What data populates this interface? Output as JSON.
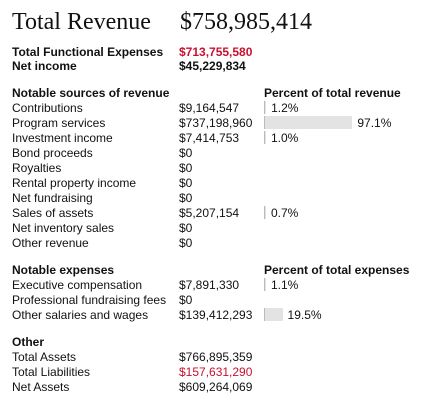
{
  "header": {
    "title": "Total Revenue",
    "amount": "$758,985,414"
  },
  "summary": [
    {
      "label": "Total Functional Expenses",
      "value": "$713,755,580",
      "color": "#c8102e"
    },
    {
      "label": "Net income",
      "value": "$45,229,834"
    }
  ],
  "revenue": {
    "heading": "Notable sources of revenue",
    "percent_heading": "Percent of total revenue",
    "rows": [
      {
        "label": "Contributions",
        "amount": "$9,164,547",
        "percent": 1.2,
        "percent_label": "1.2%"
      },
      {
        "label": "Program services",
        "amount": "$737,198,960",
        "percent": 97.1,
        "percent_label": "97.1%"
      },
      {
        "label": "Investment income",
        "amount": "$7,414,753",
        "percent": 1.0,
        "percent_label": "1.0%"
      },
      {
        "label": "Bond proceeds",
        "amount": "$0"
      },
      {
        "label": "Royalties",
        "amount": "$0"
      },
      {
        "label": "Rental property income",
        "amount": "$0"
      },
      {
        "label": "Net fundraising",
        "amount": "$0"
      },
      {
        "label": "Sales of assets",
        "amount": "$5,207,154",
        "percent": 0.7,
        "percent_label": "0.7%"
      },
      {
        "label": "Net inventory sales",
        "amount": "$0"
      },
      {
        "label": "Other revenue",
        "amount": "$0"
      }
    ]
  },
  "expenses": {
    "heading": "Notable expenses",
    "percent_heading": "Percent of total expenses",
    "rows": [
      {
        "label": "Executive compensation",
        "amount": "$7,891,330",
        "percent": 1.1,
        "percent_label": "1.1%"
      },
      {
        "label": "Professional fundraising fees",
        "amount": "$0"
      },
      {
        "label": "Other salaries and wages",
        "amount": "$139,412,293",
        "percent": 19.5,
        "percent_label": "19.5%"
      }
    ]
  },
  "other": {
    "heading": "Other",
    "rows": [
      {
        "label": "Total Assets",
        "amount": "$766,895,359"
      },
      {
        "label": "Total Liabilities",
        "amount": "$157,631,290",
        "color": "#c8102e"
      },
      {
        "label": "Net Assets",
        "amount": "$609,264,069"
      }
    ]
  }
}
